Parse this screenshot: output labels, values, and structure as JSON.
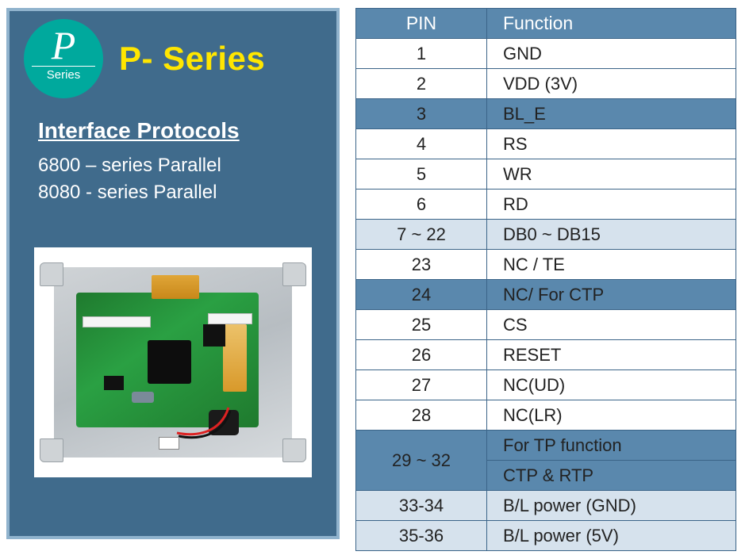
{
  "left_panel": {
    "border_color": "#90b3cd",
    "background_color": "#406b8c",
    "badge": {
      "bg_color": "#00a99d",
      "letter": "P",
      "sub": "Series",
      "text_color": "#ffffff"
    },
    "title": "P- Series",
    "title_color": "#ffe600",
    "subtitle": "Interface Protocols",
    "protocols": [
      "6800 – series Parallel",
      "8080 -  series Parallel"
    ],
    "text_color": "#ffffff",
    "pcb": {
      "wire_colors": [
        "#d22",
        "#222"
      ]
    }
  },
  "table": {
    "header_bg": "#5a88ad",
    "header_text_color": "#ffffff",
    "border_color": "#3b6488",
    "row_colors": {
      "white": "#ffffff",
      "mid": "#5a88ad",
      "light": "#d6e2ed"
    },
    "columns": [
      "PIN",
      "Function"
    ],
    "rows": [
      {
        "pin": "1",
        "func": "GND",
        "style": "white"
      },
      {
        "pin": "2",
        "func": "VDD (3V)",
        "style": "white"
      },
      {
        "pin": "3",
        "func": "BL_E",
        "style": "mid"
      },
      {
        "pin": "4",
        "func": "RS",
        "style": "white"
      },
      {
        "pin": "5",
        "func": "WR",
        "style": "white"
      },
      {
        "pin": "6",
        "func": "RD",
        "style": "white"
      },
      {
        "pin": "7 ~ 22",
        "func": "DB0 ~ DB15",
        "style": "light"
      },
      {
        "pin": "23",
        "func": "NC / TE",
        "style": "white"
      },
      {
        "pin": "24",
        "func": "NC/ For CTP",
        "style": "mid"
      },
      {
        "pin": "25",
        "func": "CS",
        "style": "white"
      },
      {
        "pin": "26",
        "func": "RESET",
        "style": "white"
      },
      {
        "pin": "27",
        "func": "NC(UD)",
        "style": "white"
      },
      {
        "pin": "28",
        "func": "NC(LR)",
        "style": "white"
      },
      {
        "pin": "29 ~ 32",
        "func": "For TP function",
        "style": "mid",
        "rowspan_pin": 2
      },
      {
        "pin": "",
        "func": "CTP & RTP",
        "style": "mid",
        "skip_pin": true
      },
      {
        "pin": "33-34",
        "func": "B/L power (GND)",
        "style": "light"
      },
      {
        "pin": "35-36",
        "func": "B/L power (5V)",
        "style": "light"
      }
    ]
  }
}
